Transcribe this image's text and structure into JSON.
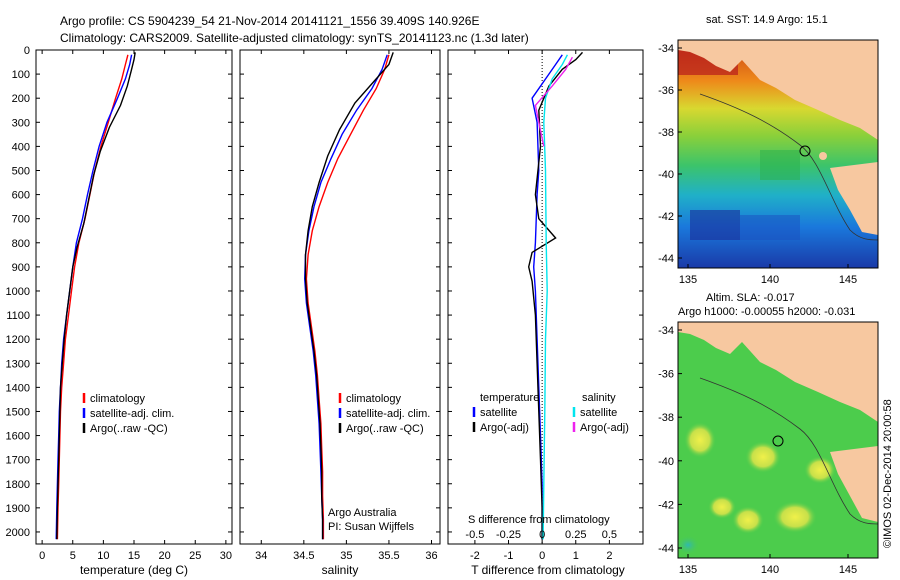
{
  "title_line1": "Argo profile: CS 5904239_54 21-Nov-2014 20141121_1556 39.409S 140.926E",
  "title_line2": "Climatology: CARS2009. Satellite-adjusted climatology: synTS_20141123.nc (1.3d later)",
  "colors": {
    "climatology": "#ff0000",
    "satellite": "#0000ff",
    "argo": "#000000",
    "cyan": "#00e5ee",
    "magenta": "#ee22ee"
  },
  "chart_data": [
    {
      "type": "line",
      "id": "temperature",
      "xlabel": "temperature (deg C)",
      "xlim": [
        -1,
        31
      ],
      "ylim": [
        0,
        2050
      ],
      "y_reversed": true,
      "xticks": [
        0,
        5,
        10,
        15,
        20,
        25,
        30
      ],
      "yticks": [
        0,
        100,
        200,
        300,
        400,
        500,
        600,
        700,
        800,
        900,
        1000,
        1100,
        1200,
        1300,
        1400,
        1500,
        1600,
        1700,
        1800,
        1900,
        2000
      ],
      "legend": {
        "entries": [
          "climatology",
          "satellite-adj. clim.",
          "Argo(..raw -QC)"
        ]
      },
      "series": [
        {
          "name": "climatology",
          "color": "#ff0000",
          "points": [
            [
              14.0,
              20
            ],
            [
              13.6,
              60
            ],
            [
              13.0,
              120
            ],
            [
              12.0,
              200
            ],
            [
              10.8,
              300
            ],
            [
              9.6,
              400
            ],
            [
              8.6,
              500
            ],
            [
              7.8,
              600
            ],
            [
              7.0,
              700
            ],
            [
              6.0,
              800
            ],
            [
              5.3,
              900
            ],
            [
              4.8,
              1000
            ],
            [
              4.3,
              1100
            ],
            [
              3.8,
              1200
            ],
            [
              3.5,
              1300
            ],
            [
              3.2,
              1400
            ],
            [
              3.0,
              1500
            ],
            [
              2.9,
              1600
            ],
            [
              2.8,
              1700
            ],
            [
              2.7,
              1800
            ],
            [
              2.6,
              1900
            ],
            [
              2.5,
              2030
            ]
          ]
        },
        {
          "name": "satellite-adj. clim.",
          "color": "#0000ff",
          "points": [
            [
              14.6,
              20
            ],
            [
              14.3,
              60
            ],
            [
              13.6,
              120
            ],
            [
              12.3,
              200
            ],
            [
              10.6,
              300
            ],
            [
              9.3,
              400
            ],
            [
              8.3,
              500
            ],
            [
              7.4,
              600
            ],
            [
              6.6,
              700
            ],
            [
              5.6,
              800
            ],
            [
              5.0,
              900
            ],
            [
              4.5,
              1000
            ],
            [
              4.0,
              1100
            ],
            [
              3.5,
              1200
            ],
            [
              3.2,
              1300
            ],
            [
              3.0,
              1400
            ],
            [
              2.8,
              1500
            ],
            [
              2.7,
              1600
            ],
            [
              2.6,
              1700
            ],
            [
              2.5,
              1800
            ],
            [
              2.4,
              1900
            ],
            [
              2.3,
              2030
            ]
          ]
        },
        {
          "name": "Argo(..raw -QC)",
          "color": "#000000",
          "points": [
            [
              15.2,
              10
            ],
            [
              15.0,
              40
            ],
            [
              14.6,
              80
            ],
            [
              13.9,
              150
            ],
            [
              12.8,
              230
            ],
            [
              11.0,
              320
            ],
            [
              9.5,
              420
            ],
            [
              8.4,
              520
            ],
            [
              7.6,
              620
            ],
            [
              6.8,
              720
            ],
            [
              5.7,
              820
            ],
            [
              5.0,
              900
            ],
            [
              4.5,
              1000
            ],
            [
              4.0,
              1100
            ],
            [
              3.6,
              1200
            ],
            [
              3.3,
              1300
            ],
            [
              3.0,
              1400
            ],
            [
              2.9,
              1500
            ],
            [
              2.8,
              1600
            ],
            [
              2.7,
              1700
            ],
            [
              2.6,
              1800
            ],
            [
              2.5,
              1900
            ],
            [
              2.4,
              2030
            ]
          ]
        }
      ]
    },
    {
      "type": "line",
      "id": "salinity",
      "xlabel": "salinity",
      "xlim": [
        33.75,
        36.1
      ],
      "ylim": [
        0,
        2050
      ],
      "y_reversed": true,
      "xticks": [
        34,
        34.5,
        35,
        35.5,
        36
      ],
      "legend": {
        "entries": [
          "climatology",
          "satellite-adj. clim.",
          "Argo(..raw -QC)"
        ]
      },
      "annotation": [
        "Argo Australia",
        "PI: Susan Wijffels"
      ],
      "series": [
        {
          "name": "climatology",
          "color": "#ff0000",
          "points": [
            [
              35.5,
              20
            ],
            [
              35.45,
              80
            ],
            [
              35.35,
              160
            ],
            [
              35.2,
              250
            ],
            [
              35.05,
              350
            ],
            [
              34.9,
              450
            ],
            [
              34.78,
              550
            ],
            [
              34.68,
              650
            ],
            [
              34.6,
              750
            ],
            [
              34.55,
              850
            ],
            [
              34.53,
              950
            ],
            [
              34.55,
              1050
            ],
            [
              34.59,
              1150
            ],
            [
              34.63,
              1250
            ],
            [
              34.66,
              1350
            ],
            [
              34.68,
              1450
            ],
            [
              34.7,
              1550
            ],
            [
              34.71,
              1650
            ],
            [
              34.72,
              1750
            ],
            [
              34.72,
              1850
            ],
            [
              34.73,
              1950
            ],
            [
              34.73,
              2030
            ]
          ]
        },
        {
          "name": "satellite-adj. clim.",
          "color": "#0000ff",
          "points": [
            [
              35.48,
              20
            ],
            [
              35.42,
              80
            ],
            [
              35.3,
              160
            ],
            [
              35.12,
              250
            ],
            [
              34.95,
              350
            ],
            [
              34.82,
              450
            ],
            [
              34.7,
              550
            ],
            [
              34.62,
              650
            ],
            [
              34.56,
              750
            ],
            [
              34.52,
              850
            ],
            [
              34.51,
              950
            ],
            [
              34.53,
              1050
            ],
            [
              34.57,
              1150
            ],
            [
              34.61,
              1250
            ],
            [
              34.64,
              1350
            ],
            [
              34.66,
              1450
            ],
            [
              34.68,
              1550
            ],
            [
              34.69,
              1650
            ],
            [
              34.7,
              1750
            ],
            [
              34.71,
              1850
            ],
            [
              34.72,
              1950
            ],
            [
              34.72,
              2030
            ]
          ]
        },
        {
          "name": "Argo(..raw -QC)",
          "color": "#000000",
          "points": [
            [
              35.55,
              10
            ],
            [
              35.5,
              60
            ],
            [
              35.35,
              120
            ],
            [
              35.1,
              220
            ],
            [
              34.92,
              330
            ],
            [
              34.78,
              440
            ],
            [
              34.68,
              550
            ],
            [
              34.6,
              650
            ],
            [
              34.55,
              750
            ],
            [
              34.52,
              850
            ],
            [
              34.52,
              950
            ],
            [
              34.54,
              1050
            ],
            [
              34.58,
              1150
            ],
            [
              34.62,
              1250
            ],
            [
              34.65,
              1350
            ],
            [
              34.67,
              1450
            ],
            [
              34.69,
              1550
            ],
            [
              34.7,
              1650
            ],
            [
              34.71,
              1750
            ],
            [
              34.71,
              1850
            ],
            [
              34.72,
              1950
            ],
            [
              34.72,
              2030
            ]
          ]
        }
      ]
    },
    {
      "type": "line",
      "id": "difference",
      "xlabel": "T difference from climatology",
      "xlabel2": "S difference from climatology",
      "xlim": [
        -2.8,
        3.0
      ],
      "ylim": [
        0,
        2050
      ],
      "y_reversed": true,
      "xticks": [
        -2,
        -1,
        0,
        1,
        2
      ],
      "xticks2": [
        -0.5,
        -0.25,
        0,
        0.25,
        0.5
      ],
      "legend": {
        "left_header": "temperature",
        "right_header": "salinity",
        "left": [
          "satellite",
          "Argo(-adj)"
        ],
        "right": [
          "satellite",
          "Argo(-adj)"
        ]
      },
      "series": [
        {
          "name": "T satellite",
          "color": "#0000ff",
          "points": [
            [
              0.6,
              20
            ],
            [
              0.4,
              60
            ],
            [
              0.2,
              100
            ],
            [
              -0.3,
              200
            ],
            [
              -0.15,
              300
            ],
            [
              -0.1,
              500
            ],
            [
              -0.15,
              600
            ],
            [
              -0.2,
              800
            ],
            [
              -0.25,
              900
            ],
            [
              -0.2,
              1000
            ],
            [
              -0.15,
              1200
            ],
            [
              -0.1,
              1400
            ],
            [
              -0.05,
              1600
            ],
            [
              0,
              1800
            ],
            [
              0,
              2030
            ]
          ]
        },
        {
          "name": "T Argo(-adj)",
          "color": "#000000",
          "points": [
            [
              1.2,
              10
            ],
            [
              1.0,
              40
            ],
            [
              0.6,
              80
            ],
            [
              0.2,
              150
            ],
            [
              -0.1,
              250
            ],
            [
              -0.05,
              400
            ],
            [
              -0.2,
              600
            ],
            [
              -0.1,
              700
            ],
            [
              0.4,
              780
            ],
            [
              -0.3,
              840
            ],
            [
              -0.4,
              900
            ],
            [
              -0.3,
              960
            ],
            [
              -0.2,
              1100
            ],
            [
              -0.15,
              1300
            ],
            [
              -0.1,
              1500
            ],
            [
              -0.05,
              1700
            ],
            [
              0,
              1900
            ],
            [
              0,
              2030
            ]
          ]
        },
        {
          "name": "S satellite",
          "color": "#00e5ee",
          "points": [
            [
              0.75,
              20
            ],
            [
              0.6,
              60
            ],
            [
              0.3,
              120
            ],
            [
              0.1,
              200
            ],
            [
              0.05,
              300
            ],
            [
              0.1,
              500
            ],
            [
              0.12,
              800
            ],
            [
              0.15,
              1000
            ],
            [
              0.1,
              1200
            ],
            [
              0.08,
              1500
            ],
            [
              0.05,
              1800
            ],
            [
              0.03,
              2030
            ]
          ]
        },
        {
          "name": "S Argo(-adj)",
          "color": "#ee22ee",
          "points": [
            [
              0.9,
              30
            ],
            [
              0.7,
              80
            ],
            [
              0.3,
              150
            ],
            [
              -0.2,
              230
            ],
            [
              -0.1,
              300
            ],
            [
              0.05,
              400
            ]
          ]
        }
      ]
    }
  ],
  "maps": [
    {
      "label": "sat. SST: 14.9 Argo: 15.1",
      "label2": "",
      "yticks": [
        "-34",
        "-36",
        "-38",
        "-40",
        "-42",
        "-44"
      ],
      "xticks": [
        "135",
        "140",
        "145"
      ]
    },
    {
      "label": "Altim. SLA: -0.017",
      "label2": "Argo h1000: -0.00055 h2000: -0.031",
      "yticks": [
        "-34",
        "-36",
        "-38",
        "-40",
        "-42",
        "-44"
      ],
      "xticks": [
        "135",
        "140",
        "145"
      ]
    }
  ],
  "credit": "©IMOS 02-Dec-2014 20:00:58"
}
